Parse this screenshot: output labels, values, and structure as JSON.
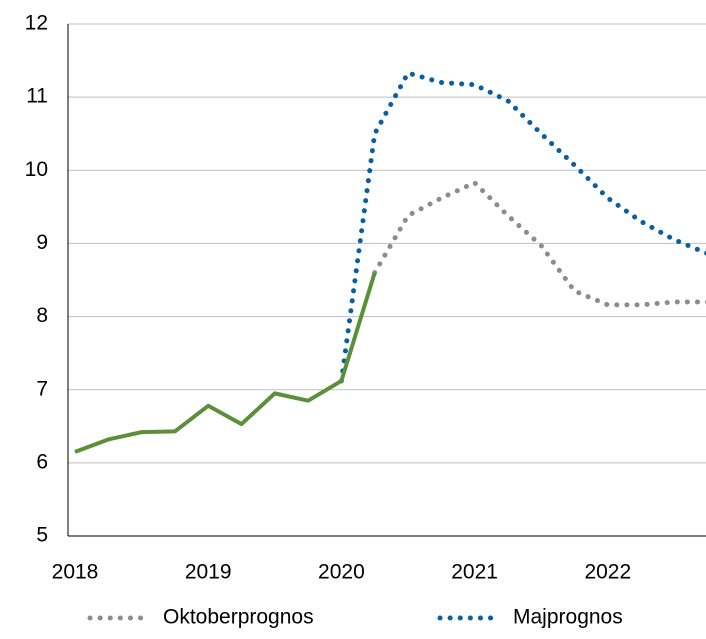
{
  "chart_data": {
    "type": "line",
    "categories": [
      "2018",
      null,
      null,
      null,
      "2019",
      null,
      null,
      null,
      "2020",
      null,
      null,
      null,
      "2021",
      null,
      null,
      null,
      "2022",
      null,
      null,
      null
    ],
    "series": [
      {
        "name": "Oktoberprognos",
        "color": "#8c8c8c",
        "dash": "dotted",
        "values": [
          null,
          null,
          null,
          null,
          null,
          null,
          null,
          null,
          null,
          8.6,
          9.38,
          9.62,
          9.83,
          9.38,
          8.97,
          8.35,
          8.16,
          8.16,
          8.2,
          8.2
        ]
      },
      {
        "name": "Majprognos",
        "color": "#0b5fa0",
        "dash": "dotted",
        "values": [
          null,
          null,
          null,
          null,
          null,
          null,
          null,
          null,
          7.12,
          10.5,
          11.33,
          11.2,
          11.17,
          10.95,
          10.5,
          10.07,
          9.62,
          9.3,
          9.05,
          8.86
        ]
      },
      {
        "color": "#5b8f3a",
        "dash": "solid",
        "values": [
          6.15,
          6.32,
          6.42,
          6.43,
          6.78,
          6.53,
          6.95,
          6.85,
          7.12,
          8.6,
          null,
          null,
          null,
          null,
          null,
          null,
          null,
          null,
          null,
          null
        ]
      }
    ],
    "ylim": [
      5,
      12
    ],
    "yticks": [
      5,
      6,
      7,
      8,
      9,
      10,
      11,
      12
    ],
    "grid": true
  }
}
